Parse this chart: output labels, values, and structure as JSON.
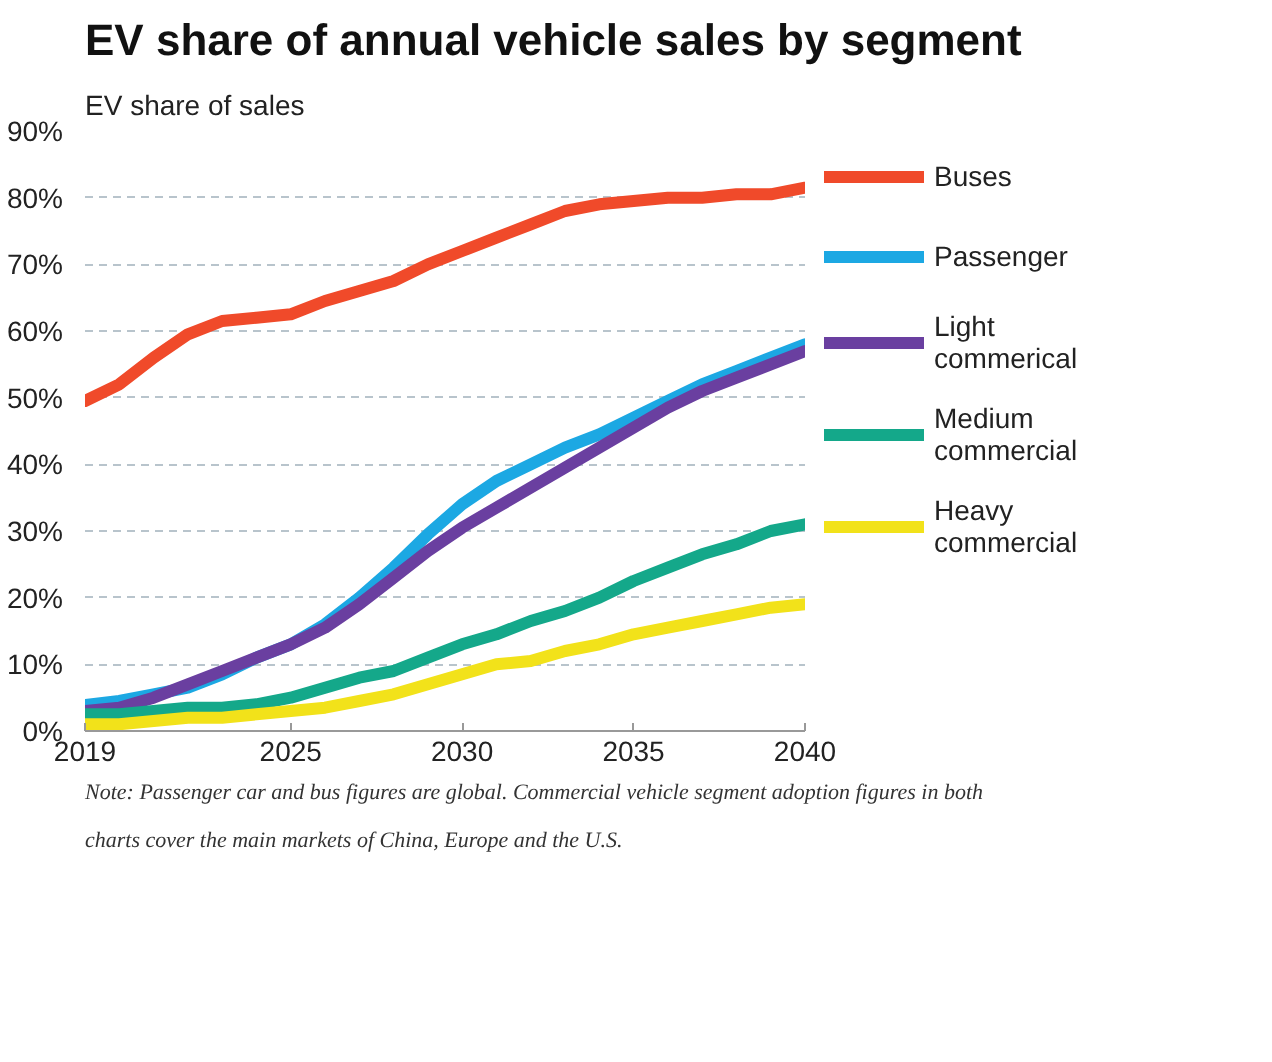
{
  "chart_data": {
    "type": "line",
    "title": "EV share of annual vehicle sales by segment",
    "ylabel": "EV share of sales",
    "x": [
      2019,
      2020,
      2021,
      2022,
      2023,
      2024,
      2025,
      2026,
      2027,
      2028,
      2029,
      2030,
      2031,
      2032,
      2033,
      2034,
      2035,
      2036,
      2037,
      2038,
      2039,
      2040
    ],
    "series": [
      {
        "name": "Buses",
        "color": "#f04a2a",
        "values": [
          49.5,
          52,
          56,
          59.5,
          61.5,
          62,
          62.5,
          64.5,
          66,
          67.5,
          70,
          72,
          74,
          76,
          78,
          79,
          79.5,
          80,
          80,
          80.5,
          80.5,
          81.5
        ]
      },
      {
        "name": "Passenger",
        "color": "#1ca8e3",
        "values": [
          3.9,
          4.5,
          5.5,
          6.5,
          8.5,
          11,
          13,
          16,
          20,
          24.5,
          29.5,
          34,
          37.5,
          40,
          42.5,
          44.5,
          47,
          49.5,
          52,
          54,
          56,
          58
        ]
      },
      {
        "name": "Light commerical",
        "color": "#6a3fa0",
        "values": [
          3,
          3.5,
          5,
          7,
          9,
          11,
          13,
          15.5,
          19,
          23,
          27,
          30.5,
          33.5,
          36.5,
          39.5,
          42.5,
          45.5,
          48.5,
          51,
          53,
          55,
          57
        ]
      },
      {
        "name": "Medium commercial",
        "color": "#14a88a",
        "values": [
          2.5,
          2.5,
          3,
          3.5,
          3.5,
          4,
          5,
          6.5,
          8,
          9,
          11,
          13,
          14.5,
          16.5,
          18,
          20,
          22.5,
          24.5,
          26.5,
          28,
          30,
          31
        ]
      },
      {
        "name": "Heavy commercial",
        "color": "#f2e21a",
        "values": [
          1,
          1,
          1.5,
          2,
          2,
          2.5,
          3,
          3.5,
          4.5,
          5.5,
          7,
          8.5,
          10,
          10.5,
          12,
          13,
          14.5,
          15.5,
          16.5,
          17.5,
          18.5,
          19
        ]
      }
    ],
    "xlim": [
      2019,
      2040
    ],
    "ylim": [
      0,
      90
    ],
    "xticks": [
      2019,
      2025,
      2030,
      2035,
      2040
    ],
    "yticks": [
      {
        "value": 0,
        "label": "0%"
      },
      {
        "value": 10,
        "label": "10%"
      },
      {
        "value": 20,
        "label": "20%"
      },
      {
        "value": 30,
        "label": "30%"
      },
      {
        "value": 40,
        "label": "40%"
      },
      {
        "value": 50,
        "label": "50%"
      },
      {
        "value": 60,
        "label": "60%"
      },
      {
        "value": 70,
        "label": "70%"
      },
      {
        "value": 80,
        "label": "80%"
      },
      {
        "value": 90,
        "label": "90%"
      }
    ],
    "grid": "y",
    "legend": "right",
    "line_style": "solid",
    "annotations": [
      "Note: Passenger car and bus figures are global. Commercial vehicle segment adoption figures in both charts cover the main markets of China, Europe and the U.S."
    ]
  }
}
